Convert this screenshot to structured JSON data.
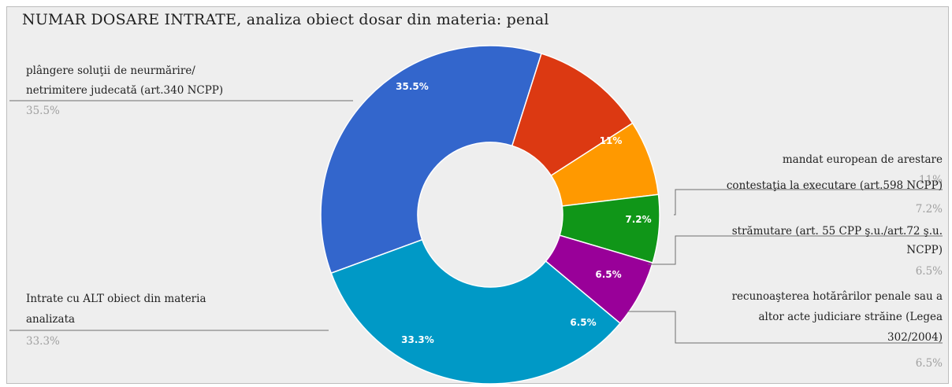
{
  "chart_data": {
    "type": "pie",
    "donut": true,
    "title": "NUMAR DOSARE INTRATE, analiza obiect dosar din materia: penal",
    "slices": [
      {
        "label_lines": [
          "plângere soluţii de neurmărire/",
          "netrimitere judecată (art.340 NCPP)"
        ],
        "value": 35.5,
        "display": "35.5%",
        "color": "#3366cc"
      },
      {
        "label_lines": [
          "mandat european de arestare"
        ],
        "value": 11,
        "display": "11%",
        "color": "#dc3912"
      },
      {
        "label_lines": [
          "contestaţia la executare (art.598 NCPP)"
        ],
        "value": 7.2,
        "display": "7.2%",
        "color": "#ff9900"
      },
      {
        "label_lines": [
          "strămutare (art. 55 CPP ş.u./art.72 ş.u.",
          "NCPP)"
        ],
        "value": 6.5,
        "display": "6.5%",
        "color": "#109618"
      },
      {
        "label_lines": [
          "recunoaşterea hotărârilor penale sau a",
          "altor acte judiciare străine (Legea",
          "302/2004)"
        ],
        "value": 6.5,
        "display": "6.5%",
        "color": "#990099"
      },
      {
        "label_lines": [
          "Intrate cu ALT obiect din materia",
          "analizata"
        ],
        "value": 33.3,
        "display": "33.3%",
        "color": "#0099c6"
      }
    ]
  }
}
